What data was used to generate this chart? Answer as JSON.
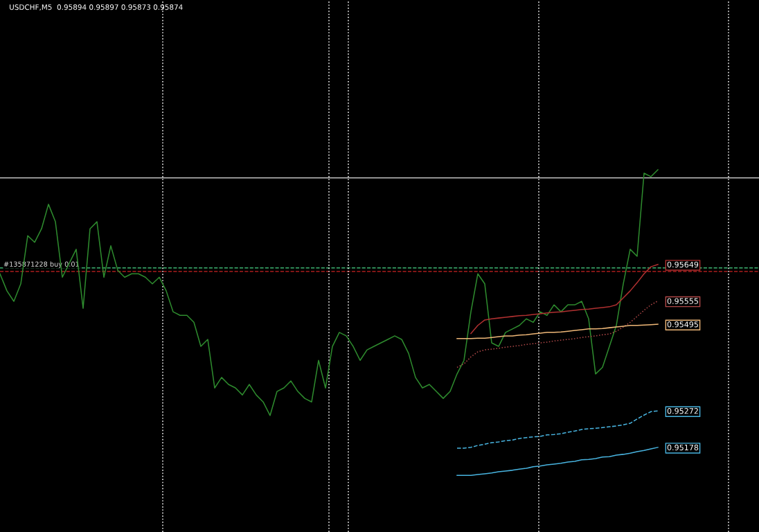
{
  "chart_data": {
    "type": "line",
    "title": "USDCHF,M5  0.95894 0.95897 0.95873 0.95874",
    "categories": [
      null,
      null,
      null,
      null,
      null,
      null,
      null,
      null,
      null,
      null,
      null,
      null,
      null,
      null,
      null,
      null,
      null,
      null,
      null,
      null,
      null,
      null,
      null,
      null,
      null,
      null,
      null,
      null,
      null,
      null,
      null,
      null,
      null,
      null,
      null,
      null,
      null,
      null,
      null,
      null,
      null,
      null,
      null,
      null,
      null,
      null,
      null,
      null,
      null,
      null,
      null,
      null,
      null,
      null,
      null,
      null,
      null,
      null,
      null,
      null,
      null,
      null,
      null,
      null,
      null,
      null,
      null,
      null,
      null,
      null,
      null,
      null,
      null,
      null,
      null,
      null,
      null,
      null,
      null,
      null,
      null,
      null,
      null,
      null,
      null,
      null,
      null,
      null,
      null,
      null,
      null,
      null,
      null,
      null,
      null,
      null,
      null,
      null,
      null,
      null,
      null,
      null,
      null,
      null,
      null,
      null,
      null,
      null,
      null,
      null
    ],
    "ylim": [
      0.9496,
      0.9633
    ],
    "yticks": [
      0.95178,
      0.95272,
      0.95495,
      0.95555,
      0.95649
    ],
    "tick_labels": "y",
    "grid": false,
    "marker": "none",
    "series": [
      {
        "color": "#2e8b2e",
        "line_style": "solid",
        "values": [
          0.95625,
          0.95581,
          0.95554,
          0.95599,
          0.95723,
          0.95706,
          0.95741,
          0.95804,
          0.95759,
          0.95616,
          0.95652,
          0.95688,
          0.95536,
          0.95741,
          0.95759,
          0.95616,
          0.95697,
          0.95634,
          0.95616,
          0.95625,
          0.95625,
          0.95616,
          0.95599,
          0.95616,
          0.95581,
          0.95527,
          0.95518,
          0.95518,
          0.955,
          0.95438,
          0.95456,
          0.95331,
          0.95358,
          0.9534,
          0.95331,
          0.95313,
          0.9534,
          0.95313,
          0.95295,
          0.9526,
          0.95322,
          0.95331,
          0.95349,
          0.95322,
          0.95304,
          0.95295,
          0.95402,
          0.95331,
          0.95438,
          0.95474,
          0.95465,
          0.95438,
          0.95402,
          0.95429,
          0.95438,
          0.95447,
          0.95456,
          0.95465,
          0.95456,
          0.9542,
          0.95358,
          0.95331,
          0.9534,
          0.95322,
          0.95304,
          0.95322,
          0.95367,
          0.95402,
          0.95527,
          0.95625,
          0.95599,
          0.95447,
          0.95438,
          0.95474,
          0.95483,
          0.95492,
          0.95509,
          0.955,
          0.95527,
          0.95518,
          0.95545,
          0.95527,
          0.95545,
          0.95545,
          0.95554,
          0.95509,
          0.95367,
          0.95384,
          0.95438,
          0.95492,
          0.95599,
          0.95688,
          0.9567,
          0.95884,
          0.95875,
          0.95893,
          null,
          null,
          null,
          null,
          null,
          null,
          null,
          null,
          null,
          null,
          null,
          null,
          null,
          null
        ]
      },
      {
        "color": "#b03030",
        "line_style": "solid",
        "values": [
          null,
          null,
          null,
          null,
          null,
          null,
          null,
          null,
          null,
          null,
          null,
          null,
          null,
          null,
          null,
          null,
          null,
          null,
          null,
          null,
          null,
          null,
          null,
          null,
          null,
          null,
          null,
          null,
          null,
          null,
          null,
          null,
          null,
          null,
          null,
          null,
          null,
          null,
          null,
          null,
          null,
          null,
          null,
          null,
          null,
          null,
          null,
          null,
          null,
          null,
          null,
          null,
          null,
          null,
          null,
          null,
          null,
          null,
          null,
          null,
          null,
          null,
          null,
          null,
          null,
          null,
          null,
          null,
          0.95471,
          0.95492,
          0.95506,
          0.95509,
          0.95511,
          0.95513,
          0.95515,
          0.95517,
          0.95518,
          0.9552,
          0.95522,
          0.95524,
          0.95526,
          0.95527,
          0.95529,
          0.95531,
          0.95533,
          0.95534,
          0.95536,
          0.95538,
          0.9554,
          0.95545,
          0.95563,
          0.95581,
          0.95602,
          0.95625,
          0.95643,
          0.95649,
          null,
          null,
          null,
          null,
          null,
          null,
          null,
          null,
          null,
          null,
          null,
          null,
          null,
          null
        ]
      },
      {
        "color": "#b04848",
        "line_style": "dotted",
        "values": [
          null,
          null,
          null,
          null,
          null,
          null,
          null,
          null,
          null,
          null,
          null,
          null,
          null,
          null,
          null,
          null,
          null,
          null,
          null,
          null,
          null,
          null,
          null,
          null,
          null,
          null,
          null,
          null,
          null,
          null,
          null,
          null,
          null,
          null,
          null,
          null,
          null,
          null,
          null,
          null,
          null,
          null,
          null,
          null,
          null,
          null,
          null,
          null,
          null,
          null,
          null,
          null,
          null,
          null,
          null,
          null,
          null,
          null,
          null,
          null,
          null,
          null,
          null,
          null,
          null,
          null,
          0.95384,
          0.95393,
          0.95411,
          0.95424,
          0.95429,
          0.95431,
          0.95433,
          0.95436,
          0.95438,
          0.9544,
          0.95443,
          0.95445,
          0.95447,
          0.95449,
          0.95452,
          0.95454,
          0.95456,
          0.95458,
          0.95461,
          0.95463,
          0.95465,
          0.95468,
          0.9547,
          0.95477,
          0.95488,
          0.955,
          0.95515,
          0.95531,
          0.95545,
          0.95555,
          null,
          null,
          null,
          null,
          null,
          null,
          null,
          null,
          null,
          null,
          null,
          null,
          null,
          null
        ]
      },
      {
        "color": "#f0b878",
        "line_style": "solid",
        "values": [
          null,
          null,
          null,
          null,
          null,
          null,
          null,
          null,
          null,
          null,
          null,
          null,
          null,
          null,
          null,
          null,
          null,
          null,
          null,
          null,
          null,
          null,
          null,
          null,
          null,
          null,
          null,
          null,
          null,
          null,
          null,
          null,
          null,
          null,
          null,
          null,
          null,
          null,
          null,
          null,
          null,
          null,
          null,
          null,
          null,
          null,
          null,
          null,
          null,
          null,
          null,
          null,
          null,
          null,
          null,
          null,
          null,
          null,
          null,
          null,
          null,
          null,
          null,
          null,
          null,
          null,
          0.95458,
          0.95458,
          0.95458,
          0.95459,
          0.95459,
          0.95461,
          0.95463,
          0.95465,
          0.95465,
          0.95467,
          0.95468,
          0.9547,
          0.95472,
          0.95474,
          0.95474,
          0.95475,
          0.95477,
          0.95479,
          0.95481,
          0.95483,
          0.95483,
          0.95484,
          0.95486,
          0.95488,
          0.9549,
          0.95492,
          0.95492,
          0.95493,
          0.95494,
          0.95495,
          null,
          null,
          null,
          null,
          null,
          null,
          null,
          null,
          null,
          null,
          null,
          null,
          null,
          null
        ]
      },
      {
        "color": "#48b4e0",
        "line_style": "dashed",
        "values": [
          null,
          null,
          null,
          null,
          null,
          null,
          null,
          null,
          null,
          null,
          null,
          null,
          null,
          null,
          null,
          null,
          null,
          null,
          null,
          null,
          null,
          null,
          null,
          null,
          null,
          null,
          null,
          null,
          null,
          null,
          null,
          null,
          null,
          null,
          null,
          null,
          null,
          null,
          null,
          null,
          null,
          null,
          null,
          null,
          null,
          null,
          null,
          null,
          null,
          null,
          null,
          null,
          null,
          null,
          null,
          null,
          null,
          null,
          null,
          null,
          null,
          null,
          null,
          null,
          null,
          null,
          0.95176,
          0.95176,
          0.95178,
          0.95183,
          0.95186,
          0.9519,
          0.95192,
          0.95195,
          0.95197,
          0.95201,
          0.95203,
          0.95205,
          0.95206,
          0.9521,
          0.95211,
          0.95213,
          0.95217,
          0.9522,
          0.95224,
          0.95226,
          0.95227,
          0.95229,
          0.95231,
          0.95233,
          0.95236,
          0.9524,
          0.95251,
          0.95261,
          0.9527,
          0.95272,
          null,
          null,
          null,
          null,
          null,
          null,
          null,
          null,
          null,
          null,
          null,
          null,
          null,
          null
        ]
      },
      {
        "color": "#48b4e0",
        "line_style": "solid",
        "values": [
          null,
          null,
          null,
          null,
          null,
          null,
          null,
          null,
          null,
          null,
          null,
          null,
          null,
          null,
          null,
          null,
          null,
          null,
          null,
          null,
          null,
          null,
          null,
          null,
          null,
          null,
          null,
          null,
          null,
          null,
          null,
          null,
          null,
          null,
          null,
          null,
          null,
          null,
          null,
          null,
          null,
          null,
          null,
          null,
          null,
          null,
          null,
          null,
          null,
          null,
          null,
          null,
          null,
          null,
          null,
          null,
          null,
          null,
          null,
          null,
          null,
          null,
          null,
          null,
          null,
          null,
          0.95106,
          0.95106,
          0.95106,
          0.95108,
          0.9511,
          0.95112,
          0.95115,
          0.95117,
          0.95119,
          0.95122,
          0.95124,
          0.95128,
          0.9513,
          0.95133,
          0.95135,
          0.95137,
          0.9514,
          0.95142,
          0.95146,
          0.95147,
          0.95149,
          0.95153,
          0.95154,
          0.95158,
          0.9516,
          0.95163,
          0.95167,
          0.9517,
          0.95174,
          0.95178,
          null,
          null,
          null,
          null,
          null,
          null,
          null,
          null,
          null,
          null,
          null,
          null,
          null,
          null
        ]
      }
    ],
    "ref_lines": [
      {
        "axis": "y",
        "value": 0.95872,
        "color": "#bfbfbf",
        "line_style": "solid"
      },
      {
        "axis": "y",
        "value": 0.9564,
        "label": "#135871228 buy 0.01",
        "color": "#3cb371",
        "line_style": "dashed"
      },
      {
        "axis": "y",
        "value": 0.95631,
        "color": "#cc2222",
        "line_style": "dashed"
      }
    ]
  }
}
